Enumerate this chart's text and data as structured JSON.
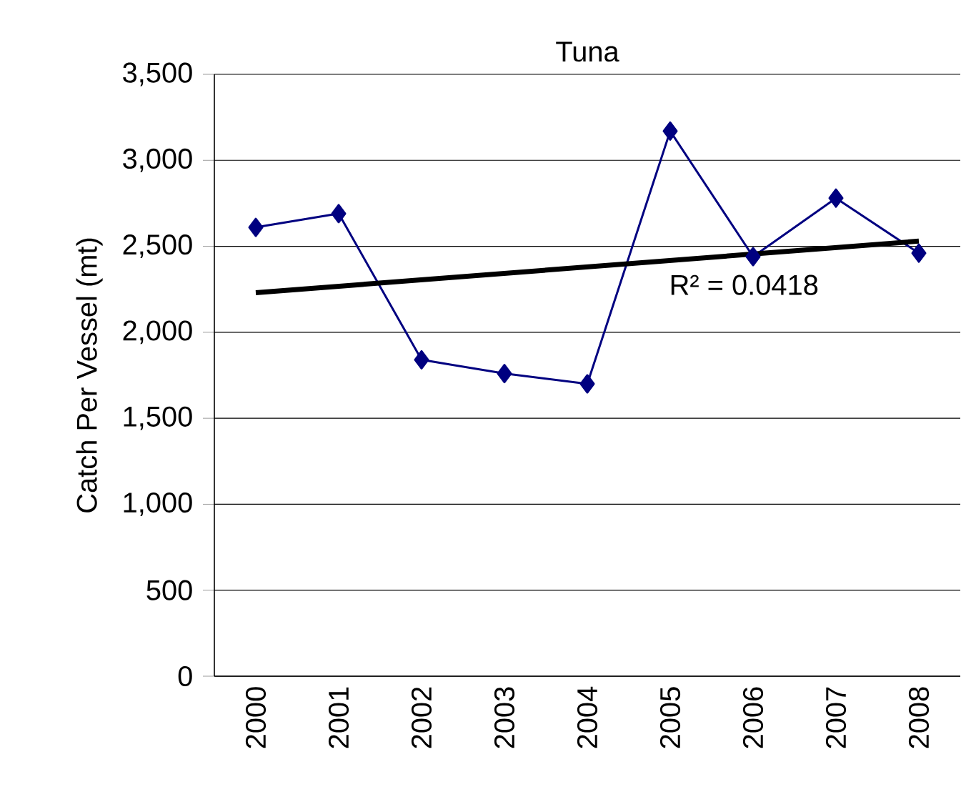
{
  "chart_data": {
    "type": "line",
    "title": "Tuna",
    "ylabel": "Catch Per Vessel (mt)",
    "categories": [
      "2000",
      "2001",
      "2002",
      "2003",
      "2004",
      "2005",
      "2006",
      "2007",
      "2008"
    ],
    "series": [
      {
        "color": "#000080",
        "values": [
          2610,
          2690,
          1840,
          1760,
          1700,
          3170,
          2440,
          2780,
          2460
        ],
        "marker": "diamond"
      },
      {
        "type": "line",
        "color": "#000000",
        "values": [
          2230,
          null,
          null,
          null,
          null,
          null,
          null,
          null,
          2530
        ],
        "marker": "none"
      }
    ],
    "ylim": [
      0,
      3500
    ],
    "yticks": [
      0,
      500,
      {
        "value": 1000,
        "label": "1,000"
      },
      {
        "value": 1500,
        "label": "1,500"
      },
      {
        "value": 2000,
        "label": "2,000"
      },
      {
        "value": 2500,
        "label": "2,500"
      },
      {
        "value": 3000,
        "label": "3,000"
      },
      {
        "value": 3500,
        "label": "3,500"
      }
    ],
    "grid": "y",
    "annotations": [
      "R² = 0.0418"
    ]
  }
}
